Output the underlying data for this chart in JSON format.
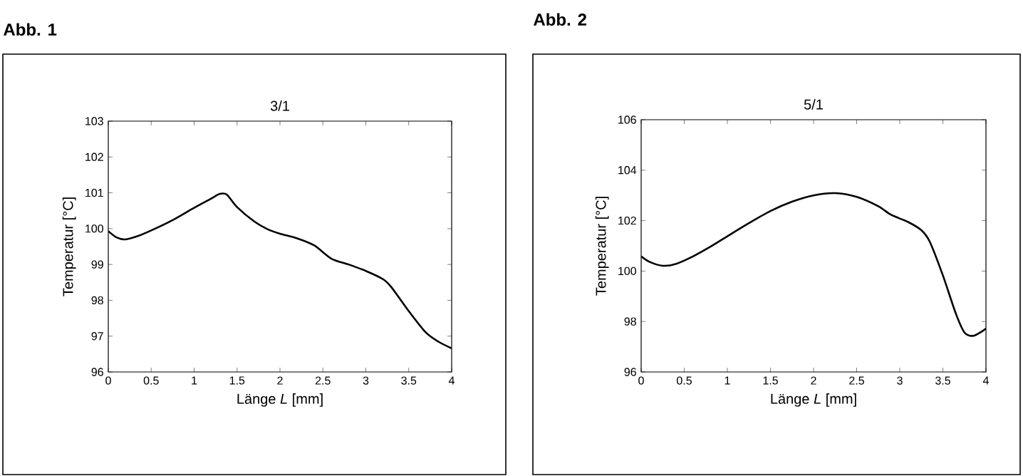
{
  "chart_data": [
    {
      "type": "line",
      "title": "Abb. 1",
      "subtitle": "3/1",
      "xlabel": "Länge *L* [mm]",
      "ylabel": "Temperatur [°C]",
      "color": "#000000",
      "x": [
        0,
        0.1,
        0.2,
        0.35,
        0.5,
        0.75,
        1.0,
        1.2,
        1.3,
        1.38,
        1.5,
        1.7,
        1.85,
        2.0,
        2.2,
        2.4,
        2.6,
        2.8,
        3.0,
        3.2,
        3.3,
        3.5,
        3.7,
        3.85,
        4.0
      ],
      "values": [
        99.93,
        99.75,
        99.7,
        99.8,
        99.95,
        100.24,
        100.58,
        100.84,
        100.97,
        100.95,
        100.6,
        100.2,
        99.99,
        99.86,
        99.73,
        99.53,
        99.16,
        99.0,
        98.82,
        98.59,
        98.36,
        97.7,
        97.1,
        96.84,
        96.66
      ],
      "xlim": [
        0,
        4
      ],
      "ylim": [
        96,
        103
      ],
      "xticks": [
        0,
        0.5,
        1,
        1.5,
        2,
        2.5,
        3,
        3.5,
        4
      ],
      "yticks": [
        96,
        97,
        98,
        99,
        100,
        101,
        102,
        103
      ]
    },
    {
      "type": "line",
      "title": "Abb. 2",
      "subtitle": "5/1",
      "xlabel": "Länge *L* [mm]",
      "ylabel": "Temperatur [°C]",
      "color": "#000000",
      "x": [
        0,
        0.1,
        0.25,
        0.4,
        0.6,
        0.8,
        1.0,
        1.25,
        1.5,
        1.75,
        2.0,
        2.25,
        2.5,
        2.75,
        2.9,
        3.1,
        3.25,
        3.35,
        3.5,
        3.65,
        3.75,
        3.85,
        3.95,
        4.0
      ],
      "values": [
        100.58,
        100.36,
        100.21,
        100.28,
        100.58,
        100.96,
        101.38,
        101.9,
        102.38,
        102.75,
        103.0,
        103.09,
        102.94,
        102.57,
        102.23,
        101.94,
        101.62,
        101.15,
        99.83,
        98.32,
        97.57,
        97.43,
        97.6,
        97.72
      ],
      "xlim": [
        0,
        4
      ],
      "ylim": [
        96,
        106
      ],
      "xticks": [
        0,
        0.5,
        1,
        1.5,
        2,
        2.5,
        3,
        3.5,
        4
      ],
      "yticks": [
        96,
        98,
        100,
        102,
        104,
        106
      ]
    }
  ]
}
